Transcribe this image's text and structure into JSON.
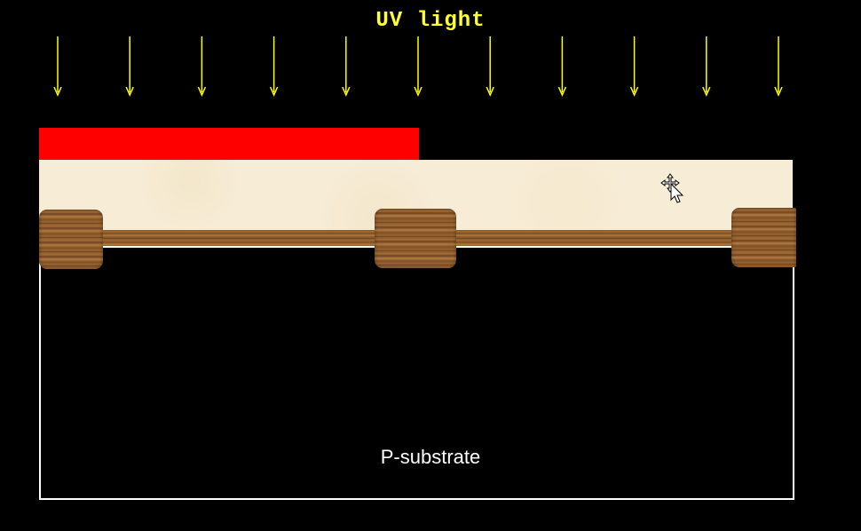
{
  "diagram": {
    "uv_label": "UV light",
    "substrate_label": "P-substrate",
    "arrow_count": 11
  },
  "colors": {
    "uv_text": "#ffff33",
    "arrow": "#ffff00",
    "photoresist": "#ff0000",
    "oxide": "#f7ecd6",
    "substrate_border": "#ffffff",
    "background": "#000000"
  },
  "icons": {
    "cursor": "move-cursor-icon"
  }
}
